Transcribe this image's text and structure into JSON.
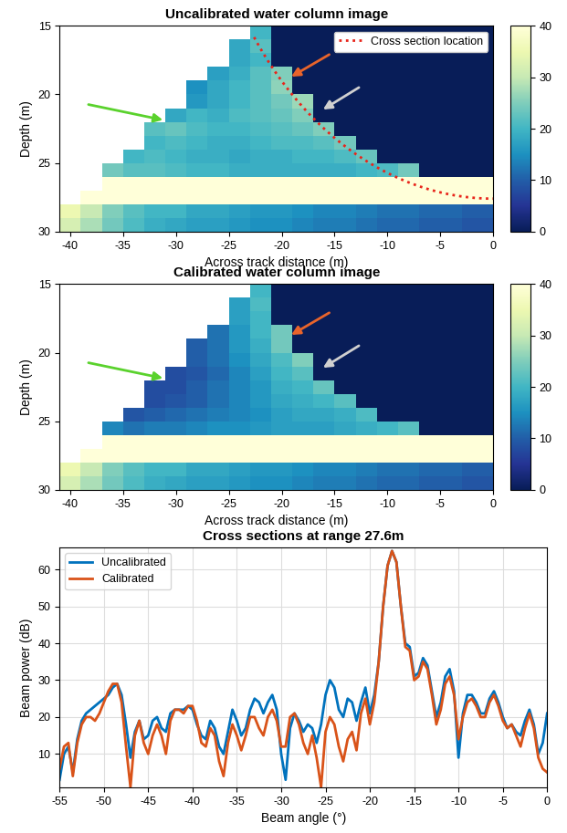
{
  "chart_data": [
    {
      "type": "heatmap",
      "title": "Uncalibrated water column image",
      "xlabel": "Across track distance (m)",
      "ylabel": "Depth (m)",
      "x": [
        -40,
        -38,
        -36,
        -34,
        -32,
        -30,
        -28,
        -26,
        -24,
        -22,
        -20,
        -18,
        -16,
        -14,
        -12,
        -10,
        -8,
        -6,
        -4,
        -2,
        0
      ],
      "y": [
        15.5,
        16.5,
        17.5,
        18.5,
        19.5,
        20.5,
        21.5,
        22.5,
        23.5,
        24.5,
        25.5,
        26.5,
        27.5,
        28.5,
        29.5
      ],
      "cells": [
        [
          null,
          null,
          null,
          null,
          null,
          null,
          null,
          null,
          null,
          20,
          0,
          0,
          0,
          0,
          0,
          0,
          0,
          0,
          0,
          0,
          0
        ],
        [
          null,
          null,
          null,
          null,
          null,
          null,
          null,
          null,
          18,
          22,
          0,
          0,
          0,
          0,
          0,
          0,
          0,
          0,
          0,
          0,
          0
        ],
        [
          null,
          null,
          null,
          null,
          null,
          null,
          null,
          null,
          18,
          20,
          0,
          0,
          0,
          0,
          0,
          0,
          0,
          0,
          0,
          0,
          0
        ],
        [
          null,
          null,
          null,
          null,
          null,
          null,
          null,
          17,
          19,
          22,
          25,
          0,
          0,
          0,
          0,
          0,
          0,
          0,
          0,
          0,
          0
        ],
        [
          null,
          null,
          null,
          null,
          null,
          null,
          15,
          18,
          20,
          22,
          26,
          0,
          0,
          0,
          0,
          0,
          0,
          0,
          0,
          0,
          0
        ],
        [
          null,
          null,
          null,
          null,
          null,
          null,
          16,
          18,
          20,
          22,
          24,
          27,
          0,
          0,
          0,
          0,
          0,
          0,
          0,
          0,
          0
        ],
        [
          null,
          null,
          null,
          null,
          null,
          18,
          20,
          19,
          21,
          22,
          23,
          25,
          0,
          0,
          0,
          0,
          0,
          0,
          0,
          0,
          0
        ],
        [
          null,
          null,
          null,
          null,
          22,
          23,
          21,
          20,
          20,
          21,
          22,
          23,
          25,
          0,
          0,
          0,
          0,
          0,
          0,
          0,
          0
        ],
        [
          null,
          null,
          null,
          null,
          20,
          21,
          20,
          19,
          19,
          20,
          21,
          21,
          22,
          24,
          0,
          0,
          0,
          0,
          0,
          0,
          0
        ],
        [
          null,
          null,
          null,
          20,
          21,
          20,
          19,
          19,
          18,
          19,
          19,
          20,
          20,
          21,
          23,
          0,
          0,
          0,
          0,
          0,
          0
        ],
        [
          null,
          null,
          24,
          22,
          22,
          21,
          20,
          20,
          19,
          19,
          19,
          19,
          19,
          19,
          20,
          21,
          24,
          0,
          0,
          0,
          0
        ],
        [
          null,
          null,
          40,
          40,
          40,
          40,
          40,
          40,
          40,
          40,
          40,
          40,
          40,
          40,
          40,
          40,
          40,
          40,
          40,
          40,
          40
        ],
        [
          null,
          40,
          40,
          40,
          40,
          40,
          40,
          40,
          40,
          40,
          40,
          40,
          40,
          40,
          40,
          40,
          40,
          40,
          40,
          40,
          40
        ],
        [
          35,
          30,
          25,
          22,
          20,
          20,
          18,
          18,
          17,
          16,
          16,
          15,
          14,
          14,
          13,
          12,
          12,
          11,
          11,
          10,
          10
        ],
        [
          32,
          28,
          24,
          21,
          19,
          18,
          17,
          17,
          16,
          15,
          15,
          14,
          13,
          13,
          12,
          11,
          11,
          10,
          10,
          9,
          9
        ]
      ],
      "xlim": [
        -41,
        0
      ],
      "ylim": [
        30,
        15
      ],
      "xticks": [
        -40,
        -35,
        -30,
        -25,
        -20,
        -15,
        -10,
        -5,
        0
      ],
      "yticks": [
        15,
        20,
        25,
        30
      ],
      "colorbar_range": [
        0,
        40
      ],
      "colorbar_ticks": [
        0,
        10,
        20,
        30,
        40
      ],
      "series": [
        {
          "name": "Cross section location",
          "color": "#e8251b",
          "line_style": "dotted",
          "range": 27.6
        }
      ],
      "legend": "upper right"
    },
    {
      "type": "heatmap",
      "title": "Calibrated water column image",
      "xlabel": "Across track distance (m)",
      "ylabel": "Depth (m)",
      "x": [
        -40,
        -38,
        -36,
        -34,
        -32,
        -30,
        -28,
        -26,
        -24,
        -22,
        -20,
        -18,
        -16,
        -14,
        -12,
        -10,
        -8,
        -6,
        -4,
        -2,
        0
      ],
      "y": [
        15.5,
        16.5,
        17.5,
        18.5,
        19.5,
        20.5,
        21.5,
        22.5,
        23.5,
        24.5,
        25.5,
        26.5,
        27.5,
        28.5,
        29.5
      ],
      "cells": [
        [
          null,
          null,
          null,
          null,
          null,
          null,
          null,
          null,
          null,
          20,
          0,
          0,
          0,
          0,
          0,
          0,
          0,
          0,
          0,
          0,
          0
        ],
        [
          null,
          null,
          null,
          null,
          null,
          null,
          null,
          null,
          17,
          21,
          0,
          0,
          0,
          0,
          0,
          0,
          0,
          0,
          0,
          0,
          0
        ],
        [
          null,
          null,
          null,
          null,
          null,
          null,
          null,
          null,
          17,
          20,
          0,
          0,
          0,
          0,
          0,
          0,
          0,
          0,
          0,
          0,
          0
        ],
        [
          null,
          null,
          null,
          null,
          null,
          null,
          null,
          12,
          16,
          20,
          24,
          0,
          0,
          0,
          0,
          0,
          0,
          0,
          0,
          0,
          0
        ],
        [
          null,
          null,
          null,
          null,
          null,
          null,
          10,
          12,
          16,
          19,
          24,
          0,
          0,
          0,
          0,
          0,
          0,
          0,
          0,
          0,
          0
        ],
        [
          null,
          null,
          null,
          null,
          null,
          null,
          10,
          12,
          15,
          18,
          21,
          25,
          0,
          0,
          0,
          0,
          0,
          0,
          0,
          0,
          0
        ],
        [
          null,
          null,
          null,
          null,
          null,
          8,
          9,
          11,
          14,
          17,
          20,
          22,
          0,
          0,
          0,
          0,
          0,
          0,
          0,
          0,
          0
        ],
        [
          null,
          null,
          null,
          null,
          8,
          8,
          10,
          12,
          14,
          16,
          19,
          20,
          23,
          0,
          0,
          0,
          0,
          0,
          0,
          0,
          0
        ],
        [
          null,
          null,
          null,
          null,
          8,
          9,
          10,
          12,
          14,
          16,
          18,
          19,
          20,
          22,
          0,
          0,
          0,
          0,
          0,
          0,
          0
        ],
        [
          null,
          null,
          null,
          9,
          10,
          11,
          12,
          13,
          14,
          15,
          17,
          18,
          18,
          19,
          21,
          0,
          0,
          0,
          0,
          0,
          0
        ],
        [
          null,
          null,
          14,
          12,
          13,
          13,
          14,
          15,
          15,
          16,
          17,
          17,
          17,
          18,
          19,
          20,
          22,
          0,
          0,
          0,
          0
        ],
        [
          null,
          null,
          40,
          40,
          40,
          40,
          40,
          40,
          40,
          40,
          40,
          40,
          40,
          40,
          40,
          40,
          40,
          40,
          40,
          40,
          40
        ],
        [
          null,
          40,
          40,
          40,
          40,
          40,
          40,
          40,
          40,
          40,
          40,
          40,
          40,
          40,
          40,
          40,
          40,
          40,
          40,
          40,
          40
        ],
        [
          35,
          30,
          25,
          22,
          20,
          20,
          18,
          18,
          17,
          16,
          16,
          15,
          14,
          14,
          13,
          12,
          12,
          11,
          11,
          10,
          10
        ],
        [
          32,
          28,
          24,
          21,
          19,
          18,
          17,
          17,
          16,
          15,
          15,
          14,
          13,
          13,
          12,
          11,
          11,
          10,
          10,
          9,
          9
        ]
      ],
      "xlim": [
        -41,
        0
      ],
      "ylim": [
        30,
        15
      ],
      "xticks": [
        -40,
        -35,
        -30,
        -25,
        -20,
        -15,
        -10,
        -5,
        0
      ],
      "yticks": [
        15,
        20,
        25,
        30
      ],
      "colorbar_range": [
        0,
        40
      ],
      "colorbar_ticks": [
        0,
        10,
        20,
        30,
        40
      ]
    },
    {
      "type": "line",
      "title": "Cross sections at range 27.6m",
      "xlabel": "Beam angle (°)",
      "ylabel": "Beam power (dB)",
      "x": [
        -55.0,
        -54.5,
        -54.0,
        -53.5,
        -53.0,
        -52.5,
        -52.0,
        -51.5,
        -51.0,
        -50.5,
        -50.0,
        -49.5,
        -49.0,
        -48.5,
        -48.0,
        -47.5,
        -47.0,
        -46.5,
        -46.0,
        -45.5,
        -45.0,
        -44.5,
        -44.0,
        -43.5,
        -43.0,
        -42.5,
        -42.0,
        -41.5,
        -41.0,
        -40.5,
        -40.0,
        -39.5,
        -39.0,
        -38.5,
        -38.0,
        -37.5,
        -37.0,
        -36.5,
        -36.0,
        -35.5,
        -35.0,
        -34.5,
        -34.0,
        -33.5,
        -33.0,
        -32.5,
        -32.0,
        -31.5,
        -31.0,
        -30.5,
        -30.0,
        -29.5,
        -29.0,
        -28.5,
        -28.0,
        -27.5,
        -27.0,
        -26.5,
        -26.0,
        -25.5,
        -25.0,
        -24.5,
        -24.0,
        -23.5,
        -23.0,
        -22.5,
        -22.0,
        -21.5,
        -21.0,
        -20.5,
        -20.0,
        -19.5,
        -19.0,
        -18.5,
        -18.0,
        -17.5,
        -17.0,
        -16.5,
        -16.0,
        -15.5,
        -15.0,
        -14.5,
        -14.0,
        -13.5,
        -13.0,
        -12.5,
        -12.0,
        -11.5,
        -11.0,
        -10.5,
        -10.0,
        -9.5,
        -9.0,
        -8.5,
        -8.0,
        -7.5,
        -7.0,
        -6.5,
        -6.0,
        -5.5,
        -5.0,
        -4.5,
        -4.0,
        -3.5,
        -3.0,
        -2.5,
        -2.0,
        -1.5,
        -1.0,
        -0.5,
        0.0
      ],
      "series": [
        {
          "name": "Uncalibrated",
          "color": "#0072BD",
          "values": [
            3,
            10,
            12,
            5,
            14,
            19,
            21,
            22,
            23,
            24,
            25,
            26,
            28,
            29,
            26,
            18,
            9,
            16,
            19,
            14,
            15,
            19,
            20,
            17,
            16,
            21,
            22,
            22,
            22,
            23,
            22,
            18,
            15,
            14,
            19,
            17,
            12,
            10,
            16,
            22,
            19,
            15,
            17,
            22,
            25,
            24,
            21,
            24,
            26,
            22,
            10,
            3,
            17,
            21,
            19,
            16,
            18,
            17,
            13,
            18,
            26,
            30,
            28,
            22,
            20,
            25,
            24,
            19,
            24,
            28,
            21,
            26,
            35,
            50,
            61,
            65,
            62,
            50,
            40,
            39,
            31,
            32,
            36,
            34,
            27,
            20,
            24,
            31,
            33,
            27,
            9,
            21,
            26,
            26,
            24,
            21,
            21,
            25,
            27,
            24,
            20,
            17,
            18,
            16,
            15,
            19,
            22,
            18,
            10,
            13,
            21
          ]
        },
        {
          "name": "Calibrated",
          "color": "#D95319",
          "values": [
            6,
            12,
            13,
            4,
            13,
            18,
            20,
            20,
            19,
            21,
            24,
            27,
            29,
            29,
            24,
            12,
            1,
            15,
            19,
            13,
            10,
            15,
            18,
            15,
            10,
            19,
            22,
            22,
            21,
            23,
            23,
            19,
            13,
            12,
            17,
            15,
            8,
            4,
            13,
            18,
            15,
            11,
            15,
            20,
            20,
            17,
            15,
            20,
            22,
            19,
            12,
            12,
            20,
            21,
            18,
            13,
            10,
            15,
            9,
            1,
            16,
            20,
            18,
            12,
            8,
            14,
            16,
            11,
            21,
            25,
            18,
            24,
            35,
            50,
            61,
            65,
            62,
            50,
            39,
            38,
            30,
            31,
            35,
            33,
            26,
            18,
            22,
            29,
            31,
            26,
            14,
            20,
            24,
            25,
            23,
            20,
            20,
            24,
            26,
            23,
            19,
            17,
            18,
            15,
            12,
            17,
            21,
            17,
            9,
            6,
            5
          ]
        }
      ],
      "xlim": [
        -55,
        0
      ],
      "ylim": [
        1,
        66
      ],
      "xticks": [
        -55,
        -50,
        -45,
        -40,
        -35,
        -30,
        -25,
        -20,
        -15,
        -10,
        -5,
        0
      ],
      "yticks": [
        10,
        20,
        30,
        40,
        50,
        60
      ],
      "grid": true,
      "legend": "upper left"
    }
  ]
}
